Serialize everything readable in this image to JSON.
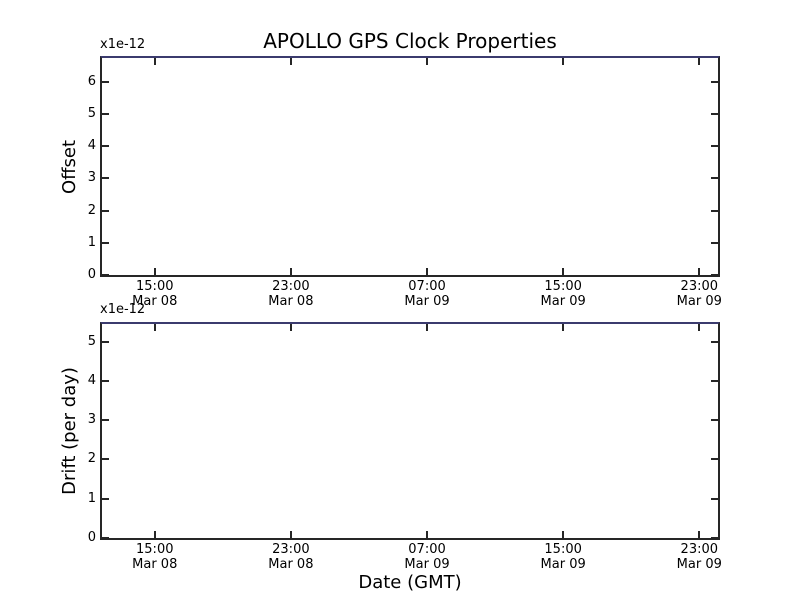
{
  "figure": {
    "title": "APOLLO GPS Clock Properties",
    "xlabel": "Date (GMT)",
    "background_color": "#ffffff",
    "spine_color": "#262626",
    "top_spine_color": "#3b3b6e",
    "text_color": "#000000"
  },
  "chart_data": [
    {
      "type": "line",
      "subplot": "top",
      "title": "APOLLO GPS Clock Properties",
      "ylabel": "Offset",
      "y_multiplier_label": "x1e-12",
      "ylim": [
        0,
        6.73
      ],
      "yticks": [
        0,
        1,
        2,
        3,
        4,
        5,
        6
      ],
      "x_axis": {
        "unit": "hours from Mar 08 00:00",
        "xlim": [
          11.9,
          48.1
        ],
        "ticks": [
          {
            "hours": 15,
            "time": "15:00",
            "date": "Mar 08"
          },
          {
            "hours": 23,
            "time": "23:00",
            "date": "Mar 08"
          },
          {
            "hours": 31,
            "time": "07:00",
            "date": "Mar 09"
          },
          {
            "hours": 39,
            "time": "15:00",
            "date": "Mar 09"
          },
          {
            "hours": 47,
            "time": "23:00",
            "date": "Mar 09"
          }
        ]
      },
      "grid": false,
      "legend": null,
      "series": []
    },
    {
      "type": "line",
      "subplot": "bottom",
      "ylabel": "Drift (per day)",
      "xlabel": "Date (GMT)",
      "y_multiplier_label": "x1e-12",
      "ylim": [
        0,
        5.45
      ],
      "yticks": [
        0,
        1,
        2,
        3,
        4,
        5
      ],
      "x_axis": {
        "unit": "hours from Mar 08 00:00",
        "xlim": [
          11.9,
          48.1
        ],
        "ticks": [
          {
            "hours": 15,
            "time": "15:00",
            "date": "Mar 08"
          },
          {
            "hours": 23,
            "time": "23:00",
            "date": "Mar 08"
          },
          {
            "hours": 31,
            "time": "07:00",
            "date": "Mar 09"
          },
          {
            "hours": 39,
            "time": "15:00",
            "date": "Mar 09"
          },
          {
            "hours": 47,
            "time": "23:00",
            "date": "Mar 09"
          }
        ]
      },
      "grid": false,
      "legend": null,
      "series": []
    }
  ]
}
